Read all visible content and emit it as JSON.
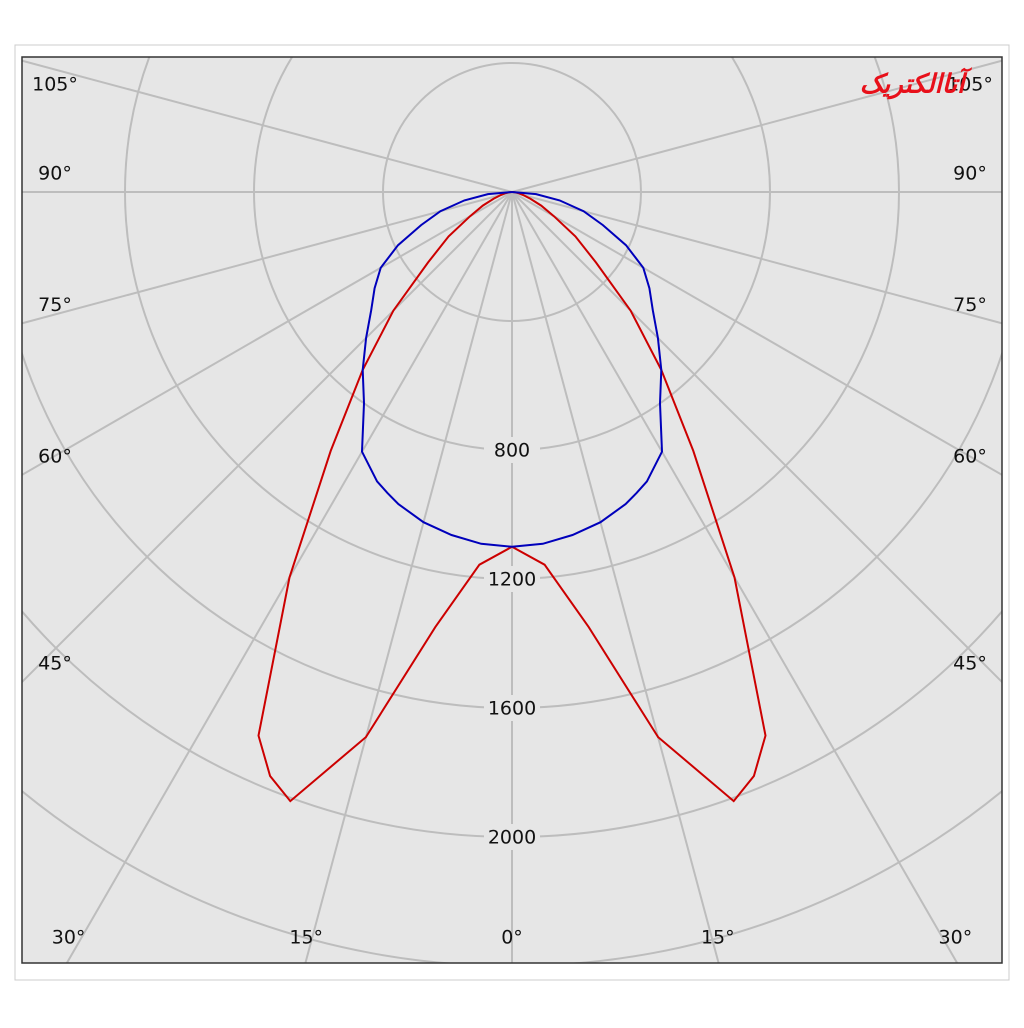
{
  "chart_data": {
    "type": "polar",
    "watermark": "آتاالکتریک",
    "angles": [
      0,
      5,
      10,
      15,
      20,
      22.5,
      25,
      30,
      35,
      40,
      45,
      50,
      55,
      60,
      65,
      70,
      75,
      80,
      85,
      90
    ],
    "series": [
      {
        "color": "#cc0000",
        "values": [
          1100,
          1160,
          1370,
          1750,
          2010,
          1960,
          1860,
          1380,
          980,
          720,
          520,
          340,
          240,
          150,
          100,
          60,
          35,
          20,
          8,
          0
        ]
      },
      {
        "color": "#0000bb",
        "values": [
          1100,
          1095,
          1080,
          1060,
          1030,
          1010,
          990,
          930,
          800,
          720,
          640,
          570,
          520,
          470,
          390,
          300,
          230,
          150,
          75,
          0
        ]
      }
    ],
    "rlim": [
      0,
      2400
    ],
    "rgrid": [
      400,
      800,
      1200,
      1600,
      2000,
      2400
    ],
    "rticks": [
      800,
      1200,
      1600,
      2000
    ],
    "angle_ticks": [
      {
        "value": 0,
        "label": "0°"
      },
      {
        "value": 15,
        "label": "15°"
      },
      {
        "value": 30,
        "label": "30°"
      },
      {
        "value": 45,
        "label": "45°"
      },
      {
        "value": 60,
        "label": "60°"
      },
      {
        "value": 75,
        "label": "75°"
      },
      {
        "value": 90,
        "label": "90°"
      },
      {
        "value": 105,
        "label": "105°"
      }
    ]
  }
}
